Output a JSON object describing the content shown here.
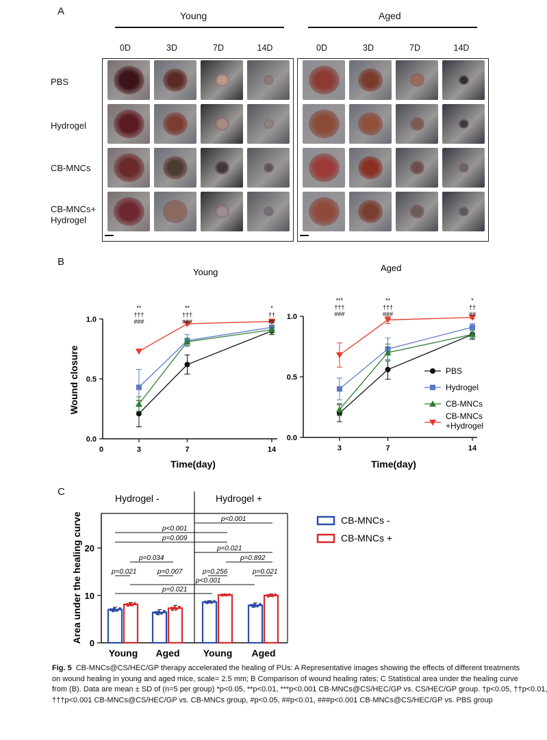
{
  "panel_a": {
    "letter": "A",
    "groups": [
      {
        "title": "Young",
        "columns": [
          "0D",
          "3D",
          "7D",
          "14D"
        ]
      },
      {
        "title": "Aged",
        "columns": [
          "0D",
          "3D",
          "7D",
          "14D"
        ]
      }
    ],
    "rows": [
      "PBS",
      "Hydrogel",
      "CB-MNCs",
      "CB-MNCs+\nHydrogel"
    ]
  },
  "panel_b": {
    "letter": "B",
    "ylabel": "Wound closure",
    "xlabel": "Time(day)",
    "legend": [
      "PBS",
      "Hydrogel",
      "CB-MNCs",
      "CB-MNCs\n+Hydrogel"
    ],
    "colors": {
      "PBS": "#111111",
      "Hydrogel": "#5b78c8",
      "CB-MNCs": "#2e7d32",
      "CB-MNCs+Hydrogel": "#e53929"
    }
  },
  "panel_c": {
    "letter": "C",
    "left_group": "Hydrogel -",
    "right_group": "Hydrogel +",
    "legend": [
      "CB-MNCs -",
      "CB-MNCs +"
    ],
    "colors": {
      "minus": "#2a4fa8",
      "plus": "#d8282b"
    },
    "pvalues": [
      "p<0.001",
      "p<0.001",
      "p=0.009",
      "p=0.021",
      "p=0.034",
      "p=0.892",
      "p=0.021",
      "p=0.007",
      "p=0.256",
      "p=0.021",
      "p<0.001",
      "p=0.021"
    ]
  },
  "chart_data": [
    {
      "type": "line",
      "title": "Young",
      "xlabel": "Time(day)",
      "ylabel": "Wound closure",
      "x": [
        3,
        7,
        14
      ],
      "x_ticks": [
        0,
        3,
        7,
        14
      ],
      "ylim": [
        0,
        1.0
      ],
      "y_ticks": [
        "0.0",
        "0.5",
        "1.0"
      ],
      "series": [
        {
          "name": "PBS",
          "values": [
            0.21,
            0.62,
            0.9
          ],
          "errors": [
            0.11,
            0.08,
            0.03
          ]
        },
        {
          "name": "Hydrogel",
          "values": [
            0.43,
            0.82,
            0.93
          ],
          "errors": [
            0.15,
            0.05,
            0.02
          ]
        },
        {
          "name": "CB-MNCs",
          "values": [
            0.29,
            0.81,
            0.91
          ],
          "errors": [
            0.06,
            0.03,
            0.02
          ]
        },
        {
          "name": "CB-MNCs+Hydrogel",
          "values": [
            0.73,
            0.96,
            0.98
          ],
          "errors": [
            0.0,
            0.01,
            0.01
          ]
        }
      ],
      "annotations": [
        {
          "x": 3,
          "lines": [
            "**",
            "†††",
            "###"
          ]
        },
        {
          "x": 7,
          "lines": [
            "**",
            "†††",
            "###"
          ]
        },
        {
          "x": 14,
          "lines": [
            "*",
            "††",
            "##"
          ]
        }
      ]
    },
    {
      "type": "line",
      "title": "Aged",
      "xlabel": "Time(day)",
      "ylabel": "",
      "x": [
        3,
        7,
        14
      ],
      "x_ticks": [
        3,
        7,
        14
      ],
      "ylim": [
        0,
        1.0
      ],
      "y_ticks": [
        "0.0",
        "0.5",
        "1.0"
      ],
      "series": [
        {
          "name": "PBS",
          "values": [
            0.2,
            0.56,
            0.85
          ],
          "errors": [
            0.07,
            0.08,
            0.04
          ]
        },
        {
          "name": "Hydrogel",
          "values": [
            0.4,
            0.73,
            0.91
          ],
          "errors": [
            0.09,
            0.09,
            0.03
          ]
        },
        {
          "name": "CB-MNCs",
          "values": [
            0.23,
            0.7,
            0.85
          ],
          "errors": [
            0.05,
            0.07,
            0.03
          ]
        },
        {
          "name": "CB-MNCs+Hydrogel",
          "values": [
            0.68,
            0.97,
            0.99
          ],
          "errors": [
            0.1,
            0.03,
            0.01
          ]
        }
      ],
      "annotations": [
        {
          "x": 3,
          "lines": [
            "***",
            "†††",
            "###"
          ]
        },
        {
          "x": 7,
          "lines": [
            "**",
            "†††",
            "###"
          ]
        },
        {
          "x": 14,
          "lines": [
            "*",
            "††",
            "##"
          ]
        }
      ]
    },
    {
      "type": "bar",
      "ylabel": "Area under the healing curve",
      "categories": [
        "Young",
        "Aged",
        "Young",
        "Aged"
      ],
      "groups": [
        "Hydrogel -",
        "Hydrogel +"
      ],
      "ylim": [
        0,
        30
      ],
      "y_ticks": [
        0,
        10,
        20
      ],
      "series": [
        {
          "name": "CB-MNCs -",
          "values": [
            7.0,
            6.4,
            8.6,
            7.9
          ],
          "errors": [
            0.5,
            0.6,
            0.3,
            0.5
          ]
        },
        {
          "name": "CB-MNCs +",
          "values": [
            8.1,
            7.3,
            10.1,
            10.0
          ],
          "errors": [
            0.4,
            0.6,
            0.1,
            0.3
          ]
        }
      ]
    }
  ],
  "caption": {
    "fig_label": "Fig. 5",
    "lines": [
      "CB-MNCs@CS/HEC/GP therapy accelerated the healing of PUs: A Representative images showing the effects of different treatments",
      "on wound healing in young and aged mice, scale= 2.5 mm; B Comparison of wound healing rates; C Statistical area under the healing curve",
      "from (B). Data are mean ± SD of (n=5 per group) *p<0.05, **p<0.01, ***p<0.001 CB-MNCs@CS/HEC/GP vs. CS/HEC/GP group. †p<0.05, ††p<0.01,",
      "†††p<0.001 CB-MNCs@CS/HEC/GP vs. CB-MNCs group, #p<0.05, ##p<0.01, ###p<0.001 CB-MNCs@CS/HEC/GP vs. PBS group"
    ]
  }
}
